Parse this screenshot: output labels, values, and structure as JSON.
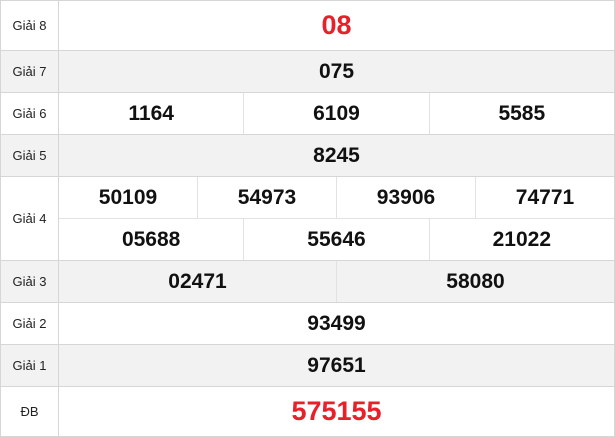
{
  "colors": {
    "accent_red": "#e8202a",
    "row_gray": "#f2f2f2"
  },
  "prizes": [
    {
      "label": "Giải 8",
      "numbers": [
        "08"
      ]
    },
    {
      "label": "Giải 7",
      "numbers": [
        "075"
      ]
    },
    {
      "label": "Giải 6",
      "numbers": [
        "1164",
        "6109",
        "5585"
      ]
    },
    {
      "label": "Giải 5",
      "numbers": [
        "8245"
      ]
    },
    {
      "label": "Giải 4",
      "numbers": [
        "50109",
        "54973",
        "93906",
        "74771",
        "05688",
        "55646",
        "21022"
      ]
    },
    {
      "label": "Giải 3",
      "numbers": [
        "02471",
        "58080"
      ]
    },
    {
      "label": "Giải 2",
      "numbers": [
        "93499"
      ]
    },
    {
      "label": "Giải 1",
      "numbers": [
        "97651"
      ]
    },
    {
      "label": "ĐB",
      "numbers": [
        "575155"
      ]
    }
  ]
}
